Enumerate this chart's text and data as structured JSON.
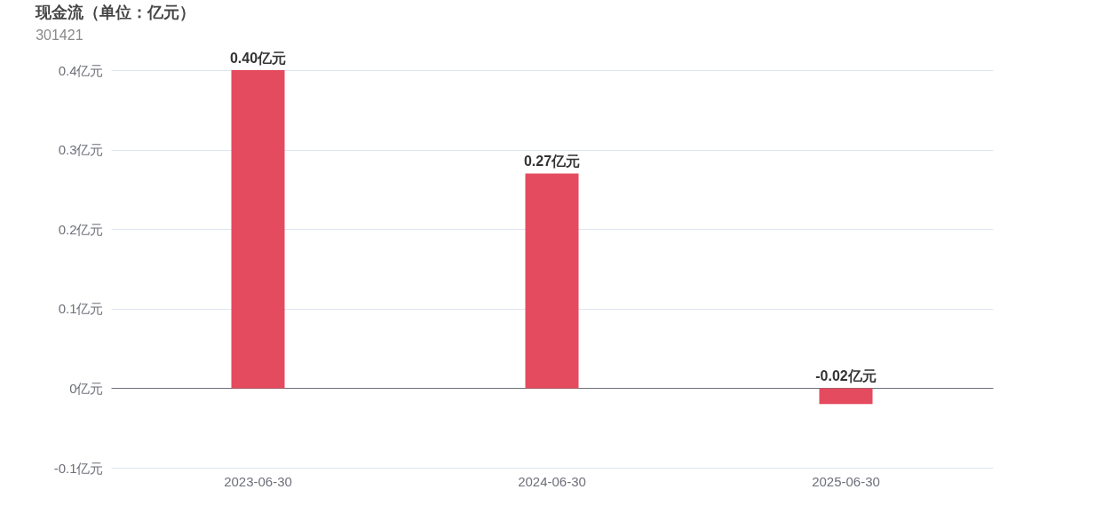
{
  "chart_data": {
    "type": "bar",
    "title": "现金流（单位：亿元）",
    "subtitle": "301421",
    "categories": [
      "2023-06-30",
      "2024-06-30",
      "2025-06-30"
    ],
    "values": [
      0.4,
      0.27,
      -0.02
    ],
    "color": "#e54b5e",
    "value_labels": [
      "0.40亿元",
      "0.27亿元",
      "-0.02亿元"
    ],
    "ylim": [
      -0.1,
      0.4
    ],
    "yticks": [
      {
        "value": 0.4,
        "label": "0.4亿元"
      },
      {
        "value": 0.3,
        "label": "0.3亿元"
      },
      {
        "value": 0.2,
        "label": "0.2亿元"
      },
      {
        "value": 0.1,
        "label": "0.1亿元"
      },
      {
        "value": 0,
        "label": "0亿元"
      },
      {
        "value": -0.1,
        "label": "-0.1亿元"
      }
    ],
    "grid": "y"
  }
}
